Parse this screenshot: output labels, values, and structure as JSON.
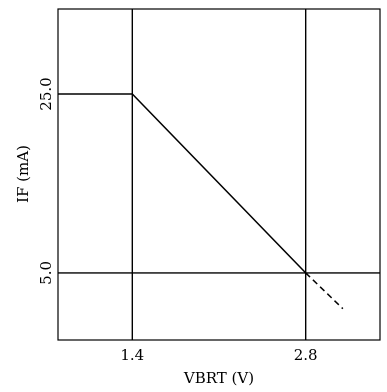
{
  "chart_data": {
    "type": "line",
    "xlabel": "VBRT (V)",
    "ylabel": "IF (mA)",
    "x_ticks": [
      {
        "value": 1.4,
        "label": "1.4"
      },
      {
        "value": 2.8,
        "label": "2.8"
      }
    ],
    "y_ticks": [
      {
        "value": 5.0,
        "label": "5.0"
      },
      {
        "value": 25.0,
        "label": "25.0"
      }
    ],
    "xlim": [
      0.8,
      3.4
    ],
    "ylim": [
      -2.5,
      34.5
    ],
    "reference_lines": {
      "vertical_x": [
        1.4,
        2.8
      ],
      "horizontal_y": [
        5.0
      ]
    },
    "series": [
      {
        "style": "solid",
        "x": [
          0.8,
          1.4,
          2.8
        ],
        "y": [
          25.0,
          25.0,
          5.0
        ]
      },
      {
        "style": "dashed",
        "x": [
          2.8,
          3.1
        ],
        "y": [
          5.0,
          1.0
        ]
      }
    ],
    "grid": false,
    "colors": {
      "line": "#000000"
    }
  }
}
